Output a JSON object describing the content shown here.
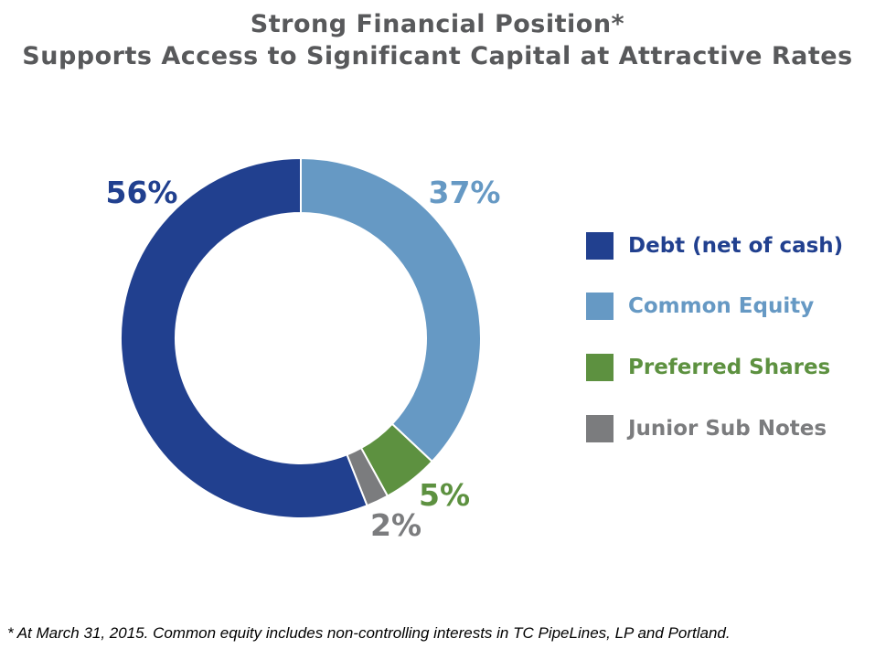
{
  "chart_data": {
    "type": "pie",
    "donut": true,
    "title": "Strong Financial Position*",
    "subtitle": "Supports Access to Significant Capital at Attractive Rates",
    "slices": [
      {
        "label": "Debt (net of cash)",
        "value": 56,
        "display": "56%",
        "color": "#21408f"
      },
      {
        "label": "Common Equity",
        "value": 37,
        "display": "37%",
        "color": "#6699c4"
      },
      {
        "label": "Preferred Shares",
        "value": 5,
        "display": "5%",
        "color": "#5d9140"
      },
      {
        "label": "Junior Sub Notes",
        "value": 2,
        "display": "2%",
        "color": "#7b7c7e"
      }
    ],
    "legend_position": "right"
  },
  "footnote": "*  At March 31, 2015. Common equity includes non-controlling interests in TC PipeLines, LP and Portland."
}
